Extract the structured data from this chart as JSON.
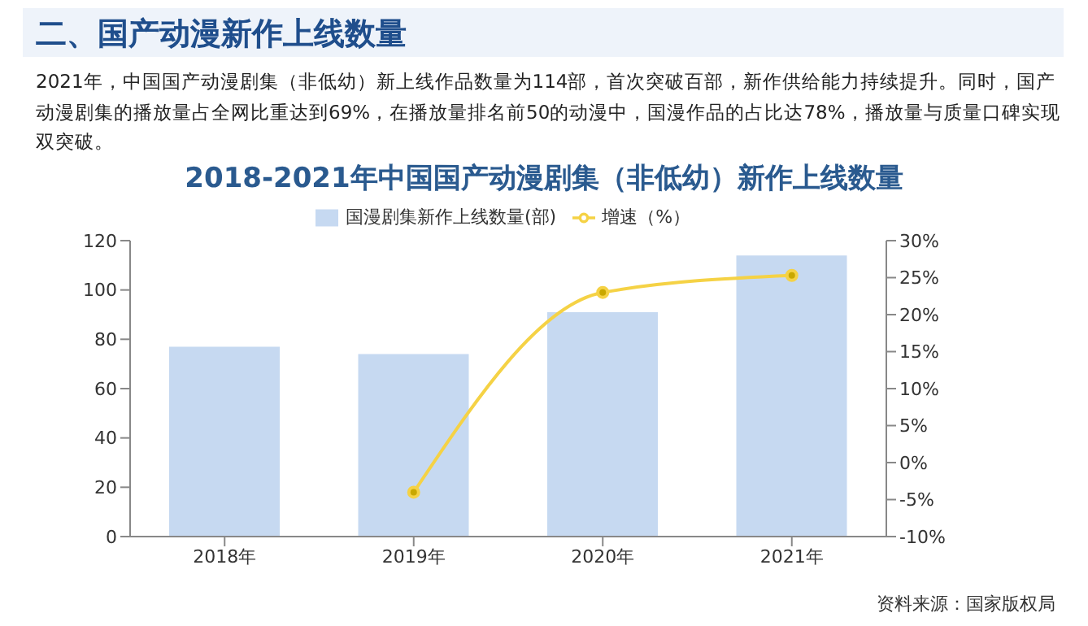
{
  "chart_data": {
    "type": "bar",
    "title": "2018-2021年中国国产动漫剧集（非低幼）新作上线数量",
    "subtitle": "二、国产动漫新作上线数量",
    "annotations": [
      "2021年，中国国产动漫剧集（非低幼）新上线作品数量为114部，首次突破百部，新作供给能力持续提升。同时，国产动漫剧集的播放量占全网比重达到69%，在播放量排名前50的动漫中，国漫作品的占比达78%，播放量与质量口碑实现双突破。",
      "资料来源：国家版权局"
    ],
    "categories": [
      "2018年",
      "2019年",
      "2020年",
      "2021年"
    ],
    "series": [
      {
        "name": "国漫剧集新作上线数量(部)",
        "color": "#c6d9f1",
        "values": [
          77,
          74,
          91,
          114
        ]
      },
      {
        "name": "增速（%）",
        "type": "line",
        "axis": "y2",
        "color": "#f5d245",
        "values": [
          null,
          -4,
          23,
          25.3
        ]
      }
    ],
    "ylim": [
      0,
      120
    ],
    "yticks": [
      0,
      20,
      40,
      60,
      80,
      100,
      120
    ],
    "y2lim": [
      -10,
      30
    ],
    "y2ticks": [
      {
        "value": -10,
        "label": "-10%"
      },
      {
        "value": -5,
        "label": "-5%"
      },
      {
        "value": 0,
        "label": "0%"
      },
      {
        "value": 5,
        "label": "5%"
      },
      {
        "value": 10,
        "label": "10%"
      },
      {
        "value": 15,
        "label": "15%"
      },
      {
        "value": 20,
        "label": "20%"
      },
      {
        "value": 25,
        "label": "25%"
      },
      {
        "value": 30,
        "label": "30%"
      }
    ],
    "legend": "top",
    "marker": "circle"
  }
}
